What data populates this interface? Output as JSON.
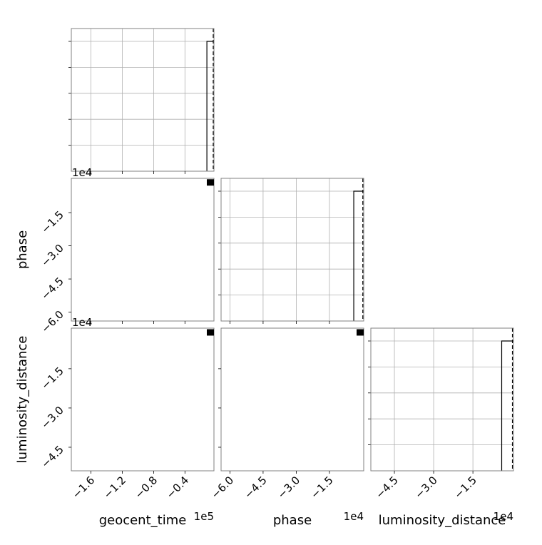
{
  "chart_data": {
    "type": "corner",
    "parameters": [
      "geocent_time",
      "phase",
      "luminosity_distance"
    ],
    "axis_labels": {
      "geocent_time": "geocent_time",
      "phase": "phase",
      "luminosity_distance": "luminosity_distance"
    },
    "ranges": {
      "geocent_time": [
        -185000,
        -3000
      ],
      "phase": [
        -64000,
        500
      ],
      "luminosity_distance": [
        -54000,
        500
      ]
    },
    "ticks": {
      "geocent_time": [
        -160000,
        -120000,
        -80000,
        -40000
      ],
      "phase": [
        -60000,
        -45000,
        -30000,
        -15000
      ],
      "luminosity_distance": [
        -45000,
        -30000,
        -15000
      ]
    },
    "tick_labels": {
      "geocent_time": [
        "−1.6",
        "−1.2",
        "−0.8",
        "−0.4"
      ],
      "phase": [
        "−6.0",
        "−4.5",
        "−3.0",
        "−1.5"
      ],
      "luminosity_distance": [
        "−4.5",
        "−3.0",
        "−1.5"
      ]
    },
    "offset_labels": {
      "geocent_time_x": "1e5",
      "phase_x": "1e4",
      "luminosity_distance_x": "1e4",
      "phase_y": "1e4",
      "luminosity_distance_y": "1e4"
    },
    "histograms": {
      "geocent_time": {
        "bin_edges": [
          -12000,
          -3000
        ],
        "counts": [
          1
        ]
      },
      "phase": {
        "bin_edges": [
          -4000,
          500
        ],
        "counts": [
          1
        ]
      },
      "luminosity_distance": {
        "bin_edges": [
          -4000,
          500
        ],
        "counts": [
          1
        ]
      }
    },
    "truths": {
      "geocent_time": -3500,
      "phase": 100,
      "luminosity_distance": 100
    },
    "hist_y_ticks": 5,
    "grid": true,
    "colors": {
      "frame": "#808080",
      "grid": "#b0b0b0",
      "hist": "#000000",
      "truth": "#000000",
      "marker": "#000000"
    }
  }
}
